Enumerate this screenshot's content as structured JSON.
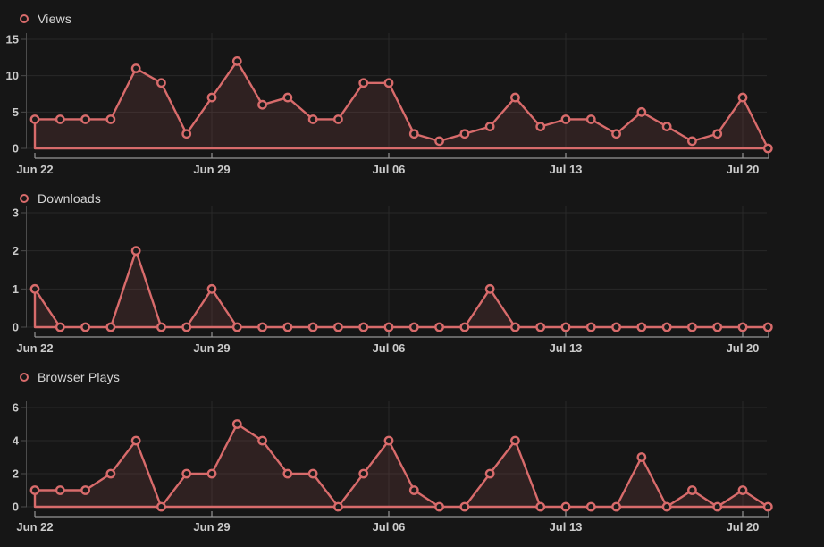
{
  "colors": {
    "background": "#161616",
    "line": "#d86b6b",
    "area_fill": "rgba(216,107,107,0.13)",
    "marker_fill": "#1a1a1a",
    "gridline": "#282828",
    "y_axis": "#4c4c4c",
    "x_axis": "#969696",
    "tick_label": "#cbcbcb",
    "legend_text": "#d6d6d6"
  },
  "chart_data": [
    {
      "type": "area",
      "title": "Views",
      "x": [
        "Jun 22",
        "Jun 23",
        "Jun 24",
        "Jun 25",
        "Jun 26",
        "Jun 27",
        "Jun 28",
        "Jun 29",
        "Jun 30",
        "Jul 01",
        "Jul 02",
        "Jul 03",
        "Jul 04",
        "Jul 05",
        "Jul 06",
        "Jul 07",
        "Jul 08",
        "Jul 09",
        "Jul 10",
        "Jul 11",
        "Jul 12",
        "Jul 13",
        "Jul 14",
        "Jul 15",
        "Jul 16",
        "Jul 17",
        "Jul 18",
        "Jul 19",
        "Jul 20",
        "Jul 21"
      ],
      "values": [
        4,
        4,
        4,
        4,
        11,
        9,
        2,
        7,
        12,
        6,
        7,
        4,
        4,
        9,
        9,
        2,
        1,
        2,
        3,
        7,
        3,
        4,
        4,
        2,
        5,
        3,
        1,
        2,
        7,
        0
      ],
      "x_tick_labels": [
        "Jun 22",
        "Jun 29",
        "Jul 06",
        "Jul 13",
        "Jul 20"
      ],
      "x_tick_indices": [
        0,
        7,
        14,
        21,
        28
      ],
      "y_ticks": [
        0,
        5,
        10,
        15
      ],
      "ylim": [
        0,
        15
      ],
      "grid": true,
      "legend_position": "top-left"
    },
    {
      "type": "area",
      "title": "Downloads",
      "x": [
        "Jun 22",
        "Jun 23",
        "Jun 24",
        "Jun 25",
        "Jun 26",
        "Jun 27",
        "Jun 28",
        "Jun 29",
        "Jun 30",
        "Jul 01",
        "Jul 02",
        "Jul 03",
        "Jul 04",
        "Jul 05",
        "Jul 06",
        "Jul 07",
        "Jul 08",
        "Jul 09",
        "Jul 10",
        "Jul 11",
        "Jul 12",
        "Jul 13",
        "Jul 14",
        "Jul 15",
        "Jul 16",
        "Jul 17",
        "Jul 18",
        "Jul 19",
        "Jul 20",
        "Jul 21"
      ],
      "values": [
        1,
        0,
        0,
        0,
        2,
        0,
        0,
        1,
        0,
        0,
        0,
        0,
        0,
        0,
        0,
        0,
        0,
        0,
        1,
        0,
        0,
        0,
        0,
        0,
        0,
        0,
        0,
        0,
        0,
        0
      ],
      "x_tick_labels": [
        "Jun 22",
        "Jun 29",
        "Jul 06",
        "Jul 13",
        "Jul 20"
      ],
      "x_tick_indices": [
        0,
        7,
        14,
        21,
        28
      ],
      "y_ticks": [
        0,
        1,
        2,
        3
      ],
      "ylim": [
        0,
        3
      ],
      "grid": true,
      "legend_position": "top-left"
    },
    {
      "type": "area",
      "title": "Browser Plays",
      "x": [
        "Jun 22",
        "Jun 23",
        "Jun 24",
        "Jun 25",
        "Jun 26",
        "Jun 27",
        "Jun 28",
        "Jun 29",
        "Jun 30",
        "Jul 01",
        "Jul 02",
        "Jul 03",
        "Jul 04",
        "Jul 05",
        "Jul 06",
        "Jul 07",
        "Jul 08",
        "Jul 09",
        "Jul 10",
        "Jul 11",
        "Jul 12",
        "Jul 13",
        "Jul 14",
        "Jul 15",
        "Jul 16",
        "Jul 17",
        "Jul 18",
        "Jul 19",
        "Jul 20",
        "Jul 21"
      ],
      "values": [
        1,
        1,
        1,
        2,
        4,
        0,
        2,
        2,
        5,
        4,
        2,
        2,
        0,
        2,
        4,
        1,
        0,
        0,
        2,
        4,
        0,
        0,
        0,
        0,
        3,
        0,
        1,
        0,
        1,
        0
      ],
      "x_tick_labels": [
        "Jun 22",
        "Jun 29",
        "Jul 06",
        "Jul 13",
        "Jul 20"
      ],
      "x_tick_indices": [
        0,
        7,
        14,
        21,
        28
      ],
      "y_ticks": [
        0,
        2,
        4,
        6
      ],
      "ylim": [
        0,
        6
      ],
      "grid": true,
      "legend_position": "top-left"
    }
  ]
}
